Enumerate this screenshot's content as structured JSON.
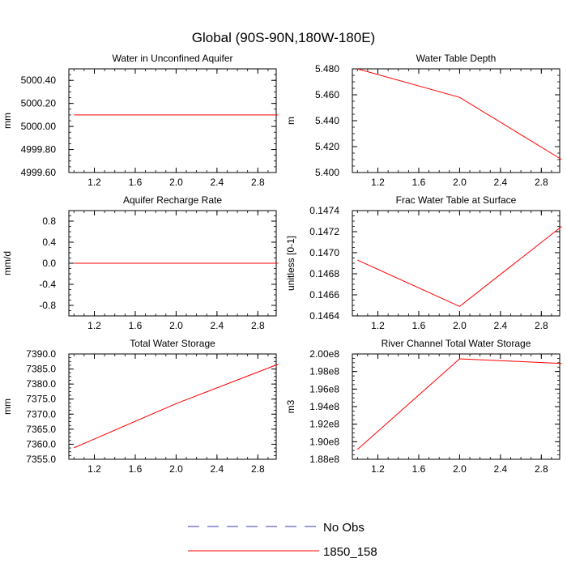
{
  "title": "Global (90S-90N,180W-180E)",
  "chart_data": [
    {
      "type": "line",
      "title": "Water in Unconfined Aquifer",
      "ylabel": "mm",
      "xlim": [
        0.95,
        2.98
      ],
      "ylim": [
        4999.6,
        5000.5
      ],
      "xticks": [
        1.2,
        1.6,
        2.0,
        2.4,
        2.8
      ],
      "xticklabels": [
        "1.2",
        "1.6",
        "2.0",
        "2.4",
        "2.8"
      ],
      "yticks": [
        4999.6,
        4999.8,
        5000.0,
        5000.2,
        5000.4
      ],
      "yticklabels": [
        "4999.60",
        "4999.80",
        "5000.00",
        "5000.20",
        "5000.40"
      ],
      "series": [
        {
          "name": "1850_158",
          "color": "#ff0000",
          "x": [
            1,
            2,
            3
          ],
          "y": [
            5000.1,
            5000.1,
            5000.1
          ]
        }
      ]
    },
    {
      "type": "line",
      "title": "Water Table Depth",
      "ylabel": "m",
      "xlim": [
        0.95,
        2.98
      ],
      "ylim": [
        5.4,
        5.48
      ],
      "xticks": [
        1.2,
        1.6,
        2.0,
        2.4,
        2.8
      ],
      "xticklabels": [
        "1.2",
        "1.6",
        "2.0",
        "2.4",
        "2.8"
      ],
      "yticks": [
        5.4,
        5.42,
        5.44,
        5.46,
        5.48
      ],
      "yticklabels": [
        "5.400",
        "5.420",
        "5.440",
        "5.460",
        "5.480"
      ],
      "series": [
        {
          "name": "1850_158",
          "color": "#ff0000",
          "x": [
            1,
            2,
            3
          ],
          "y": [
            5.48,
            5.458,
            5.41
          ]
        }
      ]
    },
    {
      "type": "line",
      "title": "Aquifer Recharge Rate",
      "ylabel": "mm/d",
      "xlim": [
        0.95,
        2.98
      ],
      "ylim": [
        -1.0,
        1.0
      ],
      "xticks": [
        1.2,
        1.6,
        2.0,
        2.4,
        2.8
      ],
      "xticklabels": [
        "1.2",
        "1.6",
        "2.0",
        "2.4",
        "2.8"
      ],
      "yticks": [
        -0.8,
        -0.4,
        0.0,
        0.4,
        0.8
      ],
      "yticklabels": [
        "-0.8",
        "-0.4",
        "0.0",
        "0.4",
        "0.8"
      ],
      "series": [
        {
          "name": "1850_158",
          "color": "#ff0000",
          "x": [
            1,
            2,
            3
          ],
          "y": [
            0.0,
            0.0,
            0.0
          ]
        }
      ]
    },
    {
      "type": "line",
      "title": "Frac Water Table at Surface",
      "ylabel": "unitless [0-1]",
      "xlim": [
        0.95,
        2.98
      ],
      "ylim": [
        0.1464,
        0.1474
      ],
      "xticks": [
        1.2,
        1.6,
        2.0,
        2.4,
        2.8
      ],
      "xticklabels": [
        "1.2",
        "1.6",
        "2.0",
        "2.4",
        "2.8"
      ],
      "yticks": [
        0.1464,
        0.1466,
        0.1468,
        0.147,
        0.1472,
        0.1474
      ],
      "yticklabels": [
        "0.1464",
        "0.1466",
        "0.1468",
        "0.1470",
        "0.1472",
        "0.1474"
      ],
      "series": [
        {
          "name": "1850_158",
          "color": "#ff0000",
          "x": [
            1,
            2,
            3
          ],
          "y": [
            0.14693,
            0.14649,
            0.14725
          ]
        }
      ]
    },
    {
      "type": "line",
      "title": "Total Water Storage",
      "ylabel": "mm",
      "xlim": [
        0.95,
        2.98
      ],
      "ylim": [
        7355.0,
        7390.0
      ],
      "xticks": [
        1.2,
        1.6,
        2.0,
        2.4,
        2.8
      ],
      "xticklabels": [
        "1.2",
        "1.6",
        "2.0",
        "2.4",
        "2.8"
      ],
      "yticks": [
        7355,
        7360,
        7365,
        7370,
        7375,
        7380,
        7385,
        7390
      ],
      "yticklabels": [
        "7355.0",
        "7360.0",
        "7365.0",
        "7370.0",
        "7375.0",
        "7380.0",
        "7385.0",
        "7390.0"
      ],
      "series": [
        {
          "name": "1850_158",
          "color": "#ff0000",
          "x": [
            1,
            2,
            3
          ],
          "y": [
            7358.8,
            7373.5,
            7386.6
          ]
        }
      ]
    },
    {
      "type": "line",
      "title": "River Channel Total Water Storage",
      "ylabel": "m3",
      "xlim": [
        0.95,
        2.98
      ],
      "ylim": [
        188000000.0,
        200000000.0
      ],
      "xticks": [
        1.2,
        1.6,
        2.0,
        2.4,
        2.8
      ],
      "xticklabels": [
        "1.2",
        "1.6",
        "2.0",
        "2.4",
        "2.8"
      ],
      "yticks": [
        188000000.0,
        190000000.0,
        192000000.0,
        194000000.0,
        196000000.0,
        198000000.0,
        200000000.0
      ],
      "yticklabels": [
        "1.88e8",
        "1.90e8",
        "1.92e8",
        "1.94e8",
        "1.96e8",
        "1.98e8",
        "2.00e8"
      ],
      "series": [
        {
          "name": "1850_158",
          "color": "#ff0000",
          "x": [
            1,
            2,
            3
          ],
          "y": [
            189120000.0,
            199450000.0,
            198920000.0
          ]
        }
      ]
    }
  ],
  "legend": [
    {
      "label": "No Obs",
      "color": "#3b3bb3",
      "style": "dashed"
    },
    {
      "label": "1850_158",
      "color": "#ff0000",
      "style": "solid"
    }
  ]
}
